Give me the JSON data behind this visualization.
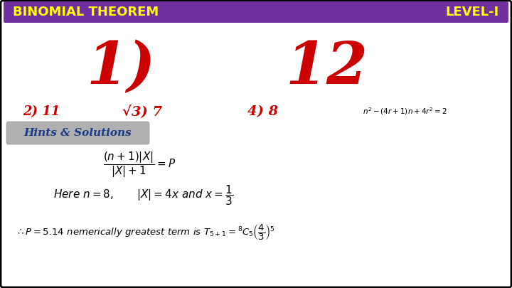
{
  "bg_color": "#ffffff",
  "border_color": "#000000",
  "header_bg": "#7030a0",
  "header_text_color": "#ffff00",
  "header_left": "BINOMIAL THEOREM",
  "header_right": "LEVEL-I",
  "header_fontsize": 13,
  "red_color": "#cc0000",
  "answer_fontsize": 13,
  "hints_label": "Hints & Solutions",
  "hints_bg": "#aaaaaa",
  "hints_fontsize": 11,
  "eq1_fontsize": 11,
  "eq2_fontsize": 11,
  "eq3_fontsize": 9.5
}
